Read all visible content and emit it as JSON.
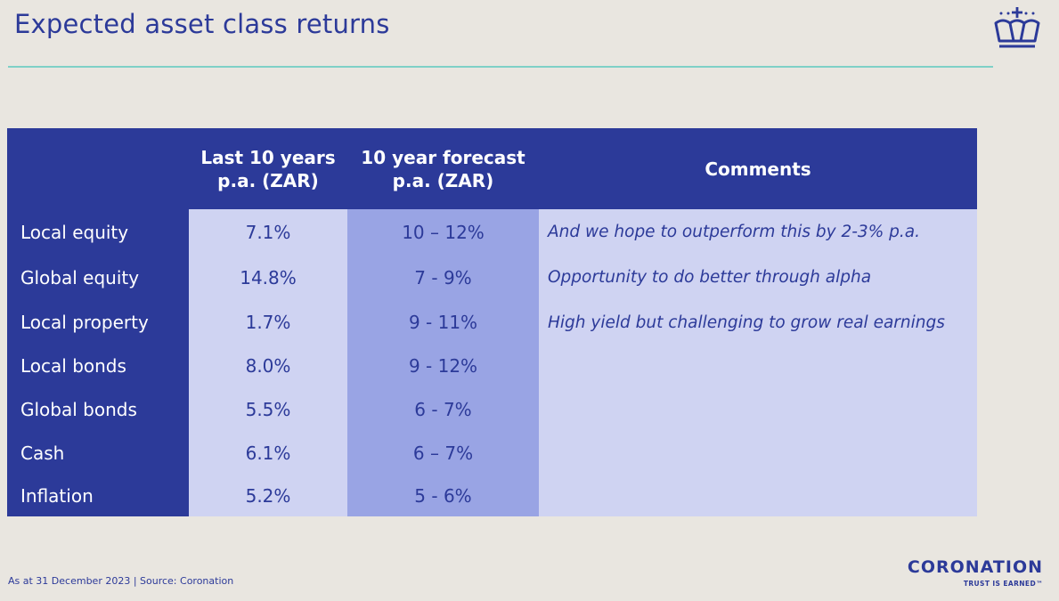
{
  "page": {
    "title": "Expected asset class returns",
    "footnote": "As at 31 December 2023 | Source: Coronation"
  },
  "brand": {
    "name": "CORONATION",
    "tagline": "TRUST IS EARNED™",
    "logo_icon": "crown-icon"
  },
  "table": {
    "headers": {
      "last10_line1": "Last 10 years",
      "last10_line2": "p.a. (ZAR)",
      "forecast_line1": "10 year forecast",
      "forecast_line2": "p.a. (ZAR)",
      "comments": "Comments"
    },
    "rows": [
      {
        "asset": "Local equity",
        "last10": "7.1%",
        "forecast": "10 – 12%",
        "comment": "And we hope to outperform this by 2-3% p.a."
      },
      {
        "asset": "Global equity",
        "last10": "14.8%",
        "forecast": "7 - 9%",
        "comment": "Opportunity to do better through alpha"
      },
      {
        "asset": "Local property",
        "last10": "1.7%",
        "forecast": "9 - 11%",
        "comment": "High yield but challenging to grow real earnings"
      },
      {
        "asset": "Local bonds",
        "last10": "8.0%",
        "forecast": "9 - 12%",
        "comment": ""
      },
      {
        "asset": "Global bonds",
        "last10": "5.5%",
        "forecast": "6 - 7%",
        "comment": ""
      },
      {
        "asset": "Cash",
        "last10": "6.1%",
        "forecast": "6 – 7%",
        "comment": ""
      },
      {
        "asset": "Inflation",
        "last10": "5.2%",
        "forecast": "5 - 6%",
        "comment": ""
      }
    ]
  },
  "colors": {
    "primary": "#2c3a99",
    "light_cell": "#cfd3f2",
    "forecast_cell": "#99a4e4",
    "accent_rule": "#7fd0c7",
    "background": "#e9e6e0"
  }
}
